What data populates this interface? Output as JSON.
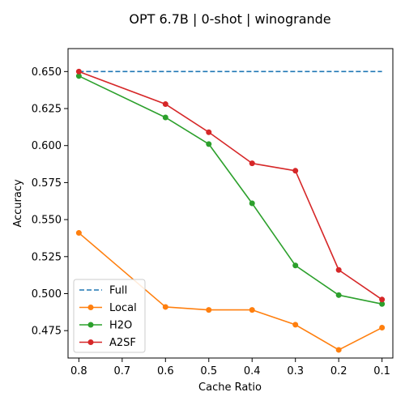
{
  "chart_data": {
    "type": "line",
    "title": "OPT 6.7B | 0-shot | winogrande",
    "xlabel": "Cache Ratio",
    "ylabel": "Accuracy",
    "x_ticks": [
      "0.8",
      "0.7",
      "0.6",
      "0.5",
      "0.4",
      "0.3",
      "0.2",
      "0.1"
    ],
    "x_tick_values": [
      0.8,
      0.7,
      0.6,
      0.5,
      0.4,
      0.3,
      0.2,
      0.1
    ],
    "y_ticks": [
      "0.475",
      "0.500",
      "0.525",
      "0.550",
      "0.575",
      "0.600",
      "0.625",
      "0.650"
    ],
    "y_tick_values": [
      0.475,
      0.5,
      0.525,
      0.55,
      0.575,
      0.6,
      0.625,
      0.65
    ],
    "x_axis_reversed": true,
    "xlim": [
      0.825,
      0.075
    ],
    "ylim": [
      0.4565,
      0.6655
    ],
    "grid": false,
    "legend_position": "bottom-left",
    "x": [
      0.8,
      0.6,
      0.5,
      0.4,
      0.3,
      0.2,
      0.1
    ],
    "series": [
      {
        "name": "Full",
        "style": "dashed",
        "markers": false,
        "color": "#1f77b4",
        "x": [
          0.8,
          0.1
        ],
        "values": [
          0.65,
          0.65
        ]
      },
      {
        "name": "Local",
        "style": "solid",
        "markers": true,
        "color": "#ff7f0e",
        "x": [
          0.8,
          0.6,
          0.5,
          0.4,
          0.3,
          0.2,
          0.1
        ],
        "values": [
          0.541,
          0.491,
          0.489,
          0.489,
          0.479,
          0.462,
          0.477
        ]
      },
      {
        "name": "H2O",
        "style": "solid",
        "markers": true,
        "color": "#2ca02c",
        "x": [
          0.8,
          0.6,
          0.5,
          0.4,
          0.3,
          0.2,
          0.1
        ],
        "values": [
          0.647,
          0.619,
          0.601,
          0.561,
          0.519,
          0.499,
          0.493
        ]
      },
      {
        "name": "A2SF",
        "style": "solid",
        "markers": true,
        "color": "#d62728",
        "x": [
          0.8,
          0.6,
          0.5,
          0.4,
          0.3,
          0.2,
          0.1
        ],
        "values": [
          0.65,
          0.628,
          0.609,
          0.588,
          0.583,
          0.516,
          0.496
        ]
      }
    ]
  }
}
